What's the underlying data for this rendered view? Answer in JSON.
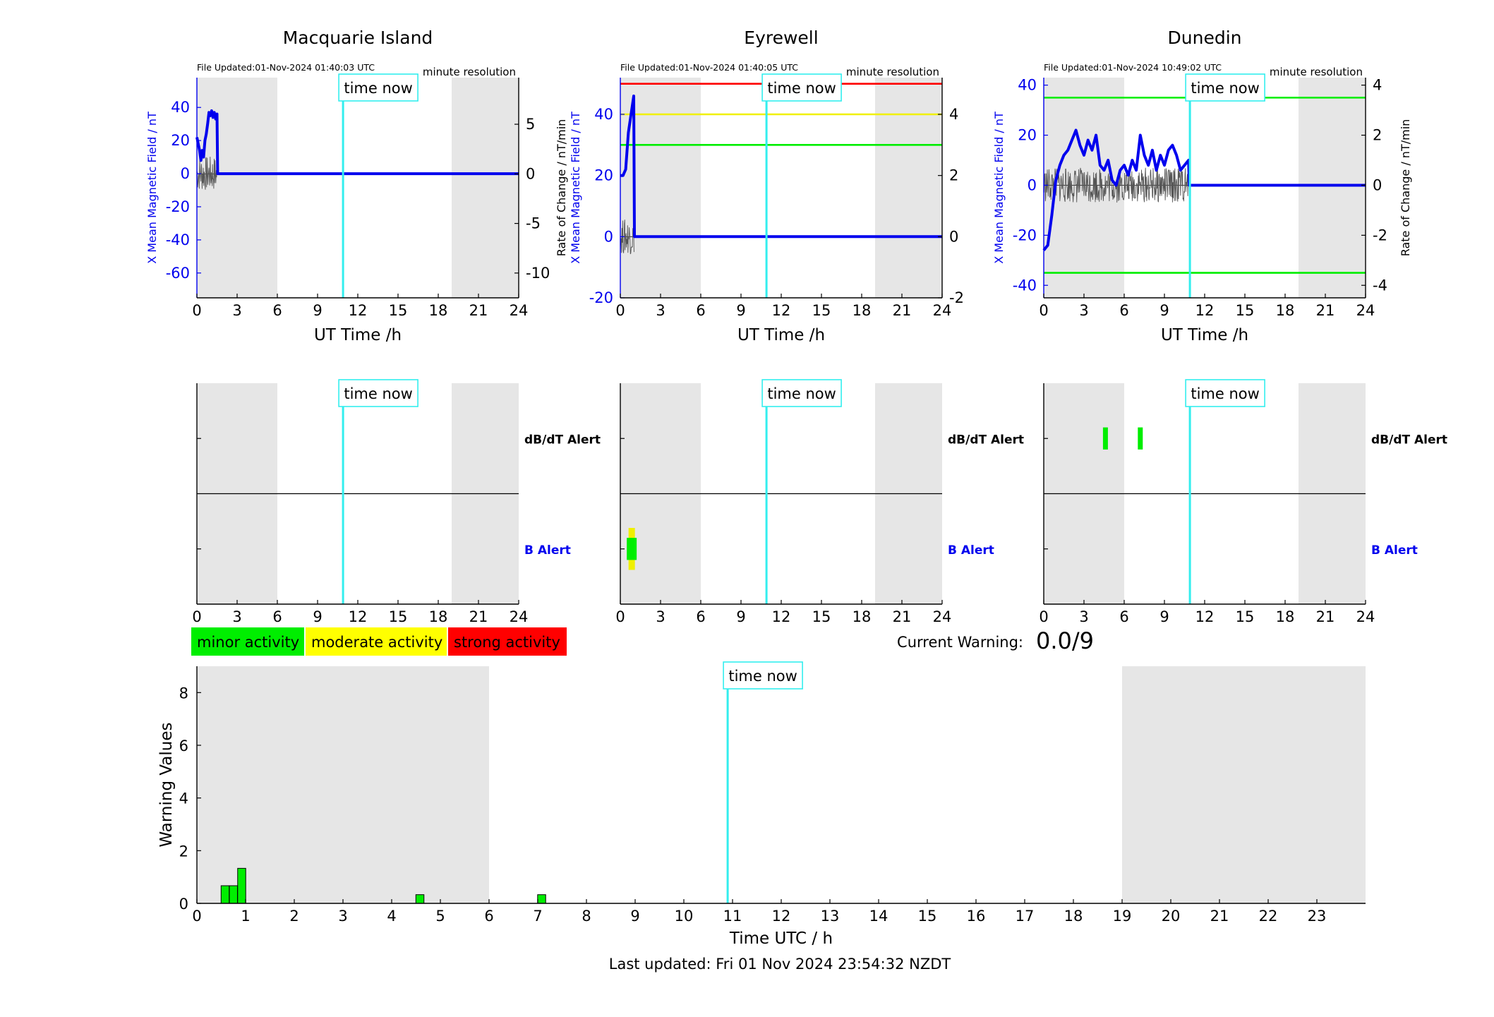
{
  "stations": [
    {
      "name": "Macquarie Island",
      "file_updated": "File Updated:01-Nov-2024 01:40:03 UTC",
      "resolution": "minute resolution",
      "ylabel_left": "X Mean Magnetic Field / nT",
      "ylabel_right": "",
      "ylim_left": [
        -75,
        58
      ],
      "ylim_right": [
        -12.5,
        9.7
      ],
      "yticks_left": [
        -60,
        -40,
        -20,
        0,
        20,
        40
      ],
      "yticks_right": [
        -10,
        -5,
        0,
        5
      ],
      "threshold_lines": [],
      "b_alert_marks": [],
      "dbdt_alert_marks": []
    },
    {
      "name": "Eyrewell",
      "file_updated": "File Updated:01-Nov-2024 01:40:05 UTC",
      "resolution": "minute resolution",
      "ylabel_left": "X Mean Magnetic Field / nT",
      "ylabel_right": "Rate of Change / nT/min",
      "ylim_left": [
        -20,
        52
      ],
      "ylim_right": [
        -2,
        5.2
      ],
      "yticks_left": [
        -20,
        0,
        20,
        40
      ],
      "yticks_right": [
        -2,
        0,
        2,
        4
      ],
      "threshold_lines": [
        {
          "value": 50,
          "color": "#ff0000"
        },
        {
          "value": 40,
          "color": "#f0f000"
        },
        {
          "value": 30,
          "color": "#00ee00"
        }
      ],
      "b_alert_marks": [
        {
          "t": 0.85,
          "color": "#f0f000",
          "half_height": 0.38
        },
        {
          "t": 0.85,
          "color": "#00ee00",
          "half_height": 0.2
        }
      ],
      "dbdt_alert_marks": []
    },
    {
      "name": "Dunedin",
      "file_updated": "File Updated:01-Nov-2024 10:49:02 UTC",
      "resolution": "minute resolution",
      "ylabel_left": "X Mean Magnetic Field / nT",
      "ylabel_right": "Rate of Change / nT/min",
      "ylim_left": [
        -45,
        43
      ],
      "ylim_right": [
        -4.5,
        4.3
      ],
      "yticks_left": [
        -40,
        -20,
        0,
        20,
        40
      ],
      "yticks_right": [
        -4,
        -2,
        0,
        2,
        4
      ],
      "threshold_lines": [
        {
          "value": 35,
          "color": "#00ee00"
        },
        {
          "value": -35,
          "color": "#00ee00"
        }
      ],
      "b_alert_marks": [],
      "dbdt_alert_marks": [
        {
          "t": 4.6,
          "color": "#00ee00",
          "half_height": 0.2
        },
        {
          "t": 7.2,
          "color": "#00ee00",
          "half_height": 0.2
        }
      ]
    }
  ],
  "chart_data": [
    {
      "type": "line",
      "title": "Macquarie Island",
      "xlabel": "UT Time /h",
      "ylabel": "X Mean Magnetic Field / nT",
      "xlim": [
        0,
        24
      ],
      "series": [
        {
          "values_x": [
            0,
            0.1,
            0.2,
            0.3,
            0.4,
            0.5,
            0.6,
            0.7,
            0.8,
            0.9,
            1.0,
            1.1,
            1.2,
            1.3,
            1.4,
            1.5,
            1.55,
            2,
            24
          ],
          "values_y": [
            22,
            18,
            14,
            8,
            14,
            10,
            20,
            24,
            30,
            37,
            35,
            38,
            34,
            37,
            33,
            36,
            0,
            0,
            0
          ]
        }
      ]
    },
    {
      "type": "line",
      "title": "Eyrewell",
      "xlabel": "UT Time /h",
      "ylabel": "X Mean Magnetic Field / nT",
      "xlim": [
        0,
        24
      ],
      "series": [
        {
          "values_x": [
            0,
            0.2,
            0.4,
            0.6,
            0.8,
            1.0,
            1.05,
            2,
            24
          ],
          "values_y": [
            20,
            20,
            22,
            34,
            40,
            46,
            0,
            0,
            0
          ]
        }
      ]
    },
    {
      "type": "line",
      "title": "Dunedin",
      "xlabel": "UT Time /h",
      "ylabel": "X Mean Magnetic Field / nT",
      "xlim": [
        0,
        24
      ],
      "series": [
        {
          "values_x": [
            0,
            0.3,
            0.6,
            0.9,
            1.2,
            1.5,
            1.8,
            2.1,
            2.4,
            2.7,
            3.0,
            3.3,
            3.6,
            3.9,
            4.2,
            4.5,
            4.8,
            5.1,
            5.4,
            5.7,
            6.0,
            6.3,
            6.6,
            6.9,
            7.2,
            7.5,
            7.8,
            8.1,
            8.4,
            8.7,
            9.0,
            9.3,
            9.6,
            9.9,
            10.2,
            10.5,
            10.8,
            10.85,
            24
          ],
          "values_y": [
            -26,
            -24,
            -12,
            2,
            8,
            12,
            14,
            18,
            22,
            16,
            12,
            18,
            14,
            20,
            8,
            6,
            10,
            2,
            0,
            6,
            8,
            4,
            10,
            6,
            20,
            12,
            8,
            14,
            6,
            12,
            8,
            14,
            16,
            12,
            6,
            8,
            10,
            0,
            0
          ]
        }
      ]
    },
    {
      "type": "bar",
      "title": "",
      "xlabel": "Time UTC / h",
      "ylabel": "Warning Values",
      "xlim": [
        0,
        24
      ],
      "ylim": [
        0,
        9
      ],
      "xticks": [
        0,
        1,
        2,
        3,
        4,
        5,
        6,
        7,
        8,
        9,
        10,
        11,
        12,
        13,
        14,
        15,
        16,
        17,
        18,
        19,
        20,
        21,
        22,
        23
      ],
      "yticks": [
        0,
        2,
        4,
        6,
        8
      ],
      "bars": [
        {
          "x": 0.58,
          "value": 0.67
        },
        {
          "x": 0.75,
          "value": 0.67
        },
        {
          "x": 0.92,
          "value": 1.33
        },
        {
          "x": 4.58,
          "value": 0.33
        },
        {
          "x": 7.08,
          "value": 0.33
        }
      ]
    }
  ],
  "shared": {
    "time_now_label": "time now",
    "time_now_utc": 10.9,
    "night_ranges": [
      [
        0,
        6
      ],
      [
        19,
        24
      ]
    ],
    "ut_xticks": [
      0,
      3,
      6,
      9,
      12,
      15,
      18,
      21,
      24
    ],
    "dbdt_alert_label": "dB/dT Alert",
    "b_alert_label": "B Alert"
  },
  "legend": [
    {
      "label": "minor activity",
      "color": "#00ee00"
    },
    {
      "label": "moderate activity",
      "color": "#ffff00"
    },
    {
      "label": "strong activity",
      "color": "#ff0000"
    }
  ],
  "warning": {
    "label": "Current Warning:",
    "value": "0.0/9"
  },
  "footer": {
    "last_updated": "Last updated: Fri 01 Nov 2024 23:54:32 NZDT"
  },
  "colors": {
    "night": "#e6e6e6",
    "time_now": "#33eeee",
    "field_line": "#0000ee",
    "left_axis": "#0000ee",
    "bar_fill": "#00ee00"
  }
}
